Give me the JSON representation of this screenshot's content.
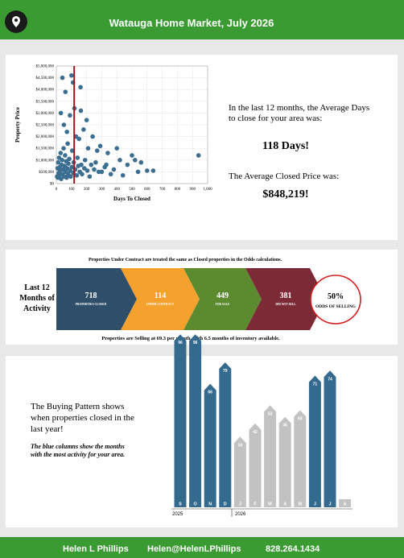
{
  "header": {
    "title": "Watauga Home Market, July 2026"
  },
  "chart_data": [
    {
      "type": "scatter",
      "xlabel": "Days To Closed",
      "ylabel": "Property Price",
      "color": "#3b6e90",
      "reference_x": 118,
      "reference_color": "#a0141e",
      "xlim": [
        0,
        1000
      ],
      "ylim": [
        0,
        5000000
      ],
      "grid": true,
      "xticks": [
        0,
        100,
        200,
        300,
        400,
        500,
        600,
        700,
        800,
        900,
        {
          "value": 1000,
          "label": "1,000"
        }
      ],
      "yticks": [
        {
          "value": 0,
          "label": "$0"
        },
        {
          "value": 500000,
          "label": "$500,000"
        },
        {
          "value": 1000000,
          "label": "$1,000,000"
        },
        {
          "value": 1500000,
          "label": "$1,500,000"
        },
        {
          "value": 2000000,
          "label": "$2,000,000"
        },
        {
          "value": 2500000,
          "label": "$2,500,000"
        },
        {
          "value": 3000000,
          "label": "$3,000,000"
        },
        {
          "value": 3500000,
          "label": "$3,500,000"
        },
        {
          "value": 4000000,
          "label": "$4,000,000"
        },
        {
          "value": 4500000,
          "label": "$4,500,000"
        },
        {
          "value": 5000000,
          "label": "$5,000,000"
        }
      ],
      "x": [
        5,
        8,
        10,
        12,
        15,
        18,
        20,
        22,
        25,
        28,
        30,
        32,
        35,
        38,
        40,
        42,
        45,
        48,
        50,
        52,
        55,
        58,
        60,
        62,
        65,
        68,
        70,
        72,
        75,
        78,
        80,
        85,
        90,
        92,
        95,
        100,
        102,
        105,
        110,
        112,
        115,
        120,
        125,
        130,
        135,
        140,
        145,
        150,
        155,
        160,
        162,
        165,
        170,
        180,
        185,
        190,
        200,
        205,
        210,
        220,
        230,
        240,
        250,
        260,
        270,
        280,
        290,
        300,
        320,
        330,
        340,
        360,
        380,
        400,
        420,
        440,
        470,
        500,
        520,
        540,
        560,
        600,
        640,
        940
      ],
      "values": [
        300000,
        650000,
        250000,
        900000,
        450000,
        1100000,
        350000,
        700000,
        550000,
        1300000,
        3000000,
        200000,
        800000,
        1000000,
        4500000,
        400000,
        600000,
        1500000,
        2500000,
        300000,
        750000,
        1200000,
        3900000,
        500000,
        950000,
        250000,
        2200000,
        650000,
        1700000,
        400000,
        850000,
        1050000,
        2900000,
        550000,
        300000,
        4600000,
        700000,
        1400000,
        4300000,
        450000,
        900000,
        3200000,
        600000,
        2000000,
        350000,
        1100000,
        750000,
        1900000,
        500000,
        4100000,
        3100000,
        800000,
        400000,
        2300000,
        650000,
        1000000,
        2700000,
        550000,
        1500000,
        300000,
        800000,
        2000000,
        600000,
        900000,
        1400000,
        500000,
        1600000,
        500000,
        700000,
        800000,
        1300000,
        400000,
        600000,
        1500000,
        1000000,
        350000,
        800000,
        1200000,
        1000000,
        500000,
        900000,
        550000,
        550000,
        1200000
      ]
    },
    {
      "type": "bar",
      "categories": [
        "S",
        "O",
        "N",
        "D",
        "J",
        "F",
        "M",
        "A",
        "M",
        "J",
        "J",
        "A"
      ],
      "values": [
        96,
        96,
        66,
        79,
        34,
        42,
        53,
        46,
        50,
        71,
        74,
        null
      ],
      "colors": [
        "#336a8e",
        "#336a8e",
        "#336a8e",
        "#336a8e",
        "#c2c2c2",
        "#c2c2c2",
        "#c2c2c2",
        "#c2c2c2",
        "#c2c2c2",
        "#336a8e",
        "#336a8e",
        "#c2c2c2"
      ],
      "year_labels": [
        "2025",
        "2026"
      ]
    }
  ],
  "summary": {
    "days_text": "In the last 12 months, the Average Days to close for your area was:",
    "days": "118 Days!",
    "price_text": "The Average Closed Price was:",
    "price": "$848,219!"
  },
  "activity": {
    "note": "Properties Under Contract are treated the same as Closed properties in the Odds calculations.",
    "title": "Last 12 Months of Activity",
    "steps": [
      {
        "value": 718,
        "label": "PROPERTIES CLOSED",
        "color": "#2f4e69"
      },
      {
        "value": 114,
        "label": "UNDER CONTRACT",
        "color": "#f4a22d"
      },
      {
        "value": 449,
        "label": "FOR SALE",
        "color": "#5b8a2f"
      },
      {
        "value": 381,
        "label": "DID NOT SELL",
        "color": "#7b2a36"
      }
    ],
    "odds": {
      "value": "50%",
      "label": "ODDS OF SELLING"
    },
    "footer": "Properties are Selling at 69.3 per month, with 6.5 months of inventory available."
  },
  "pattern": {
    "text": "The Buying Pattern shows when properties closed in the last year!",
    "note": "The blue columns show the months with the most activity for your area."
  },
  "contact": {
    "name": "Helen L Phillips",
    "email": "Helen@HelenLPhillips",
    "phone": "828.264.1434"
  }
}
